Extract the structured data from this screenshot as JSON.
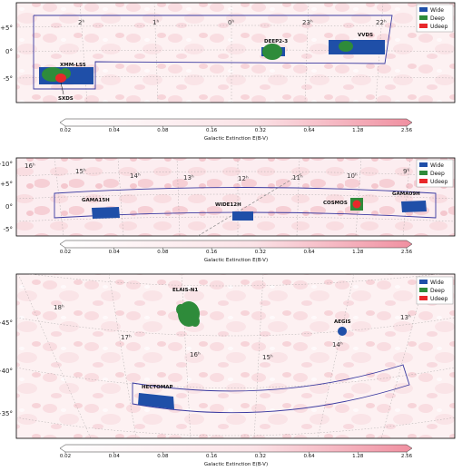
{
  "colors": {
    "wide": "#1f4fa8",
    "deep": "#2e8b3a",
    "udeep": "#e8282b",
    "survey_outline": "#3a3aa0",
    "cosmos_line": "#888888",
    "extinction_low": "#ffffff",
    "extinction_high": "#f08fa0"
  },
  "chart_data": [
    {
      "type": "map",
      "panel": "top",
      "legend": [
        "Wide",
        "Deep",
        "Udeep"
      ],
      "legend_position": "top-right",
      "ra_ticks": [
        "2ʰ",
        "1ʰ",
        "0ʰ",
        "23ʰ",
        "22ʰ"
      ],
      "dec_ticks": [
        "+5°",
        "0°",
        "-5°"
      ],
      "fields": [
        {
          "name": "XMM-LSS",
          "tiers": [
            "Wide",
            "Deep",
            "Udeep"
          ]
        },
        {
          "name": "SXDS",
          "tiers": [
            "Udeep"
          ]
        },
        {
          "name": "DEEP2-3",
          "tiers": [
            "Wide",
            "Deep"
          ]
        },
        {
          "name": "VVDS",
          "tiers": [
            "Wide",
            "Deep"
          ]
        }
      ],
      "colorbar": {
        "label": "Galactic Extinction E(B-V)",
        "ticks": [
          "0.02",
          "0.04",
          "0.08",
          "0.16",
          "0.32",
          "0.64",
          "1.28",
          "2.56"
        ],
        "scale": "log"
      }
    },
    {
      "type": "map",
      "panel": "middle",
      "legend": [
        "Wide",
        "Deep",
        "Udeep"
      ],
      "legend_position": "top-right",
      "ra_ticks": [
        "16ʰ",
        "15ʰ",
        "14ʰ",
        "13ʰ",
        "12ʰ",
        "11ʰ",
        "10ʰ",
        "9ʰ"
      ],
      "dec_ticks": [
        "+10°",
        "+5°",
        "0°",
        "-5°"
      ],
      "fields": [
        {
          "name": "GAMA15H",
          "tiers": [
            "Wide"
          ]
        },
        {
          "name": "WIDE12H",
          "tiers": [
            "Wide"
          ]
        },
        {
          "name": "COSMOS",
          "tiers": [
            "Deep",
            "Udeep"
          ]
        },
        {
          "name": "GAMA09H",
          "tiers": [
            "Wide"
          ]
        }
      ],
      "colorbar": {
        "label": "Galactic Extinction E(B-V)",
        "ticks": [
          "0.02",
          "0.04",
          "0.08",
          "0.16",
          "0.32",
          "0.64",
          "1.28",
          "2.56"
        ],
        "scale": "log"
      }
    },
    {
      "type": "map",
      "panel": "bottom",
      "legend": [
        "Wide",
        "Deep",
        "Udeep"
      ],
      "legend_position": "top-right",
      "ra_ticks": [
        "18ʰ",
        "17ʰ",
        "16ʰ",
        "15ʰ",
        "14ʰ",
        "13ʰ"
      ],
      "dec_ticks": [
        "+45°",
        "+40°",
        "+35°"
      ],
      "fields": [
        {
          "name": "ELAIS-N1",
          "tiers": [
            "Deep"
          ]
        },
        {
          "name": "AEGIS",
          "tiers": [
            "Wide"
          ]
        },
        {
          "name": "HECTOMAP",
          "tiers": [
            "Wide"
          ]
        }
      ],
      "colorbar": {
        "label": "Galactic Extinction E(B-V)",
        "ticks": [
          "0.02",
          "0.04",
          "0.08",
          "0.16",
          "0.32",
          "0.64",
          "1.28",
          "2.56"
        ],
        "scale": "log"
      }
    }
  ]
}
